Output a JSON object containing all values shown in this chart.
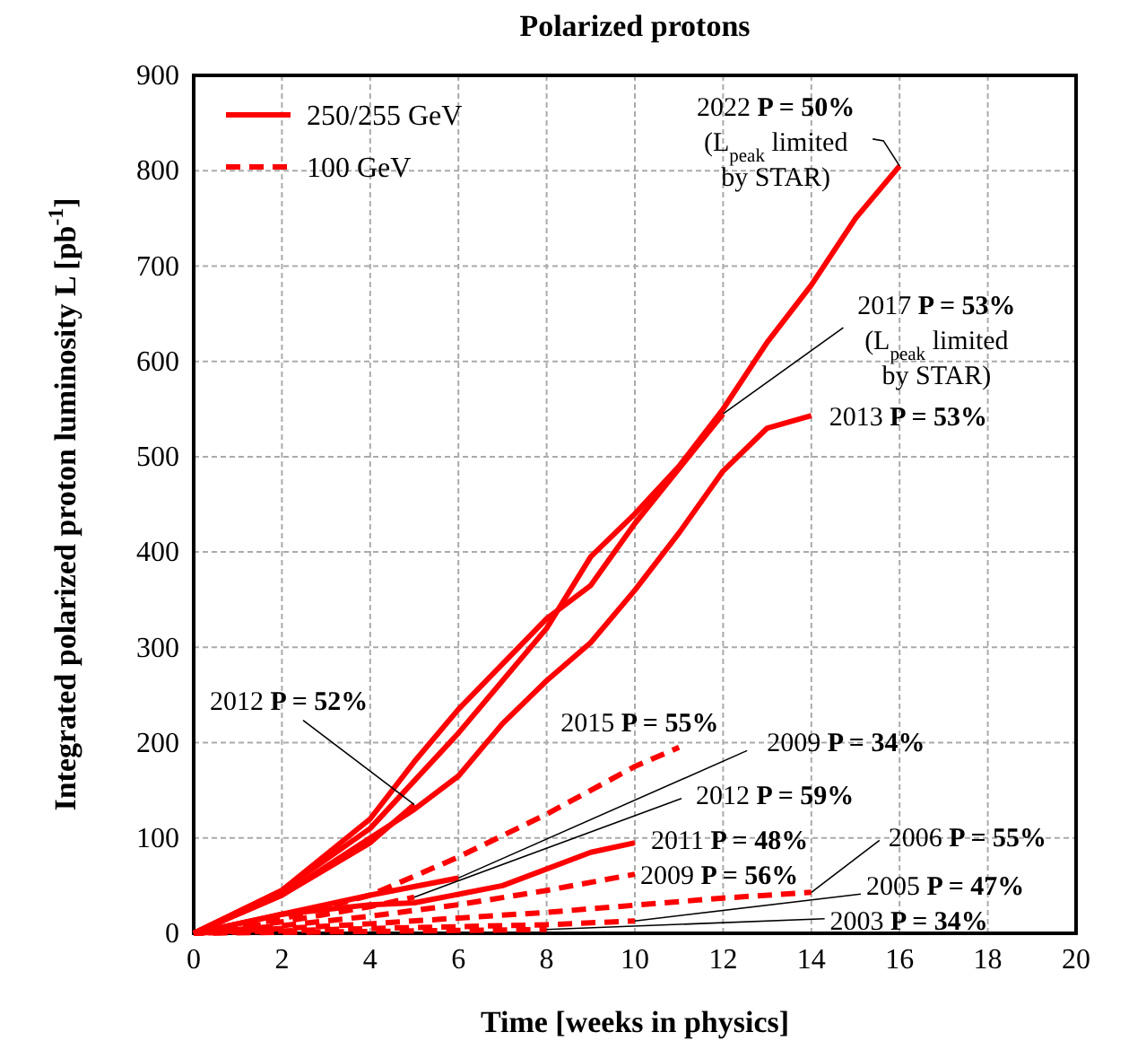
{
  "chart_data": {
    "type": "line",
    "title": "Polarized protons",
    "xlabel": "Time [weeks in physics]",
    "ylabel": "Integrated polarized proton luminosity L [pb$^{-1}$]",
    "xlim": [
      0,
      20
    ],
    "xticks": [
      0,
      2,
      4,
      6,
      8,
      10,
      12,
      14,
      16,
      18,
      20
    ],
    "ylim": [
      0,
      900
    ],
    "yticks": [
      0,
      100,
      200,
      300,
      400,
      500,
      600,
      700,
      800,
      900
    ],
    "grid": true,
    "legend": "top left",
    "marker": "none",
    "series": [
      {
        "name": "250/255 GeV",
        "color": "#ff0000",
        "line_style": "solid",
        "x": [
          0,
          2,
          4,
          6,
          8,
          9,
          10,
          11,
          12,
          13,
          14,
          15,
          16
        ],
        "values": [
          0,
          45,
          110,
          210,
          320,
          395,
          440,
          490,
          550,
          620,
          680,
          750,
          805
        ]
      },
      {
        "color": "#ff0000",
        "line_style": "solid",
        "x": [
          0,
          2,
          4,
          5,
          6,
          8,
          9,
          10,
          12
        ],
        "values": [
          0,
          45,
          120,
          180,
          235,
          330,
          365,
          430,
          545
        ]
      },
      {
        "color": "#ff0000",
        "line_style": "solid",
        "x": [
          0,
          2,
          4,
          5,
          6,
          7,
          8,
          9,
          10,
          11,
          12,
          13,
          14
        ],
        "values": [
          0,
          40,
          100,
          130,
          165,
          220,
          265,
          305,
          360,
          420,
          485,
          530,
          543
        ]
      },
      {
        "color": "#ff0000",
        "line_style": "solid",
        "x": [
          0,
          2,
          4,
          5
        ],
        "values": [
          0,
          40,
          95,
          135
        ]
      },
      {
        "color": "#ff0000",
        "line_style": "solid",
        "x": [
          0,
          2,
          4,
          6
        ],
        "values": [
          0,
          20,
          40,
          58
        ]
      },
      {
        "color": "#ff0000",
        "line_style": "solid",
        "x": [
          0,
          2,
          4,
          5,
          7,
          9,
          10
        ],
        "values": [
          0,
          20,
          30,
          32,
          50,
          85,
          95
        ]
      },
      {
        "name": "100 GeV",
        "color": "#ff0000",
        "line_style": "dashed",
        "x": [
          0,
          2,
          4,
          6,
          8,
          10,
          11
        ],
        "values": [
          0,
          15,
          40,
          80,
          125,
          175,
          195
        ]
      },
      {
        "color": "#ff0000",
        "line_style": "dashed",
        "x": [
          0,
          2,
          4,
          5
        ],
        "values": [
          0,
          12,
          28,
          38
        ]
      },
      {
        "color": "#ff0000",
        "line_style": "dashed",
        "x": [
          0,
          2,
          4,
          6,
          8,
          10
        ],
        "values": [
          0,
          8,
          18,
          30,
          45,
          62
        ]
      },
      {
        "color": "#ff0000",
        "line_style": "dashed",
        "x": [
          0,
          4,
          8,
          12,
          14
        ],
        "values": [
          0,
          10,
          22,
          37,
          43
        ]
      },
      {
        "color": "#ff0000",
        "line_style": "dashed",
        "x": [
          0,
          4,
          8,
          10
        ],
        "values": [
          0,
          5,
          9,
          13
        ]
      },
      {
        "color": "#ff0000",
        "line_style": "dashed",
        "x": [
          0,
          4,
          8
        ],
        "values": [
          0,
          2,
          4
        ]
      }
    ],
    "annotations": [
      {
        "text": "2022 P = 50%\n(L$_{peak}$ limited\nby STAR)",
        "x": 16,
        "y": 805
      },
      {
        "text": "2017 P = 53%\n(L$_{peak}$ limited\nby STAR)",
        "x": 12,
        "y": 545
      },
      {
        "text": "2013 P = 53%",
        "x": 14,
        "y": 543
      },
      {
        "text": "2012 P = 52%",
        "x": 5,
        "y": 135
      },
      {
        "text": "2015 P = 55%",
        "x": 11,
        "y": 195
      },
      {
        "text": "2009 P = 34%",
        "x": 6,
        "y": 58
      },
      {
        "text": "2012 P = 59%",
        "x": 5,
        "y": 38
      },
      {
        "text": "2011 P = 48%",
        "x": 10,
        "y": 95
      },
      {
        "text": "2009 P = 56%",
        "x": 10,
        "y": 62
      },
      {
        "text": "2006 P = 55%",
        "x": 14,
        "y": 43
      },
      {
        "text": "2005 P = 47%",
        "x": 10,
        "y": 13
      },
      {
        "text": "2003 P = 34%",
        "x": 8,
        "y": 4
      }
    ]
  }
}
